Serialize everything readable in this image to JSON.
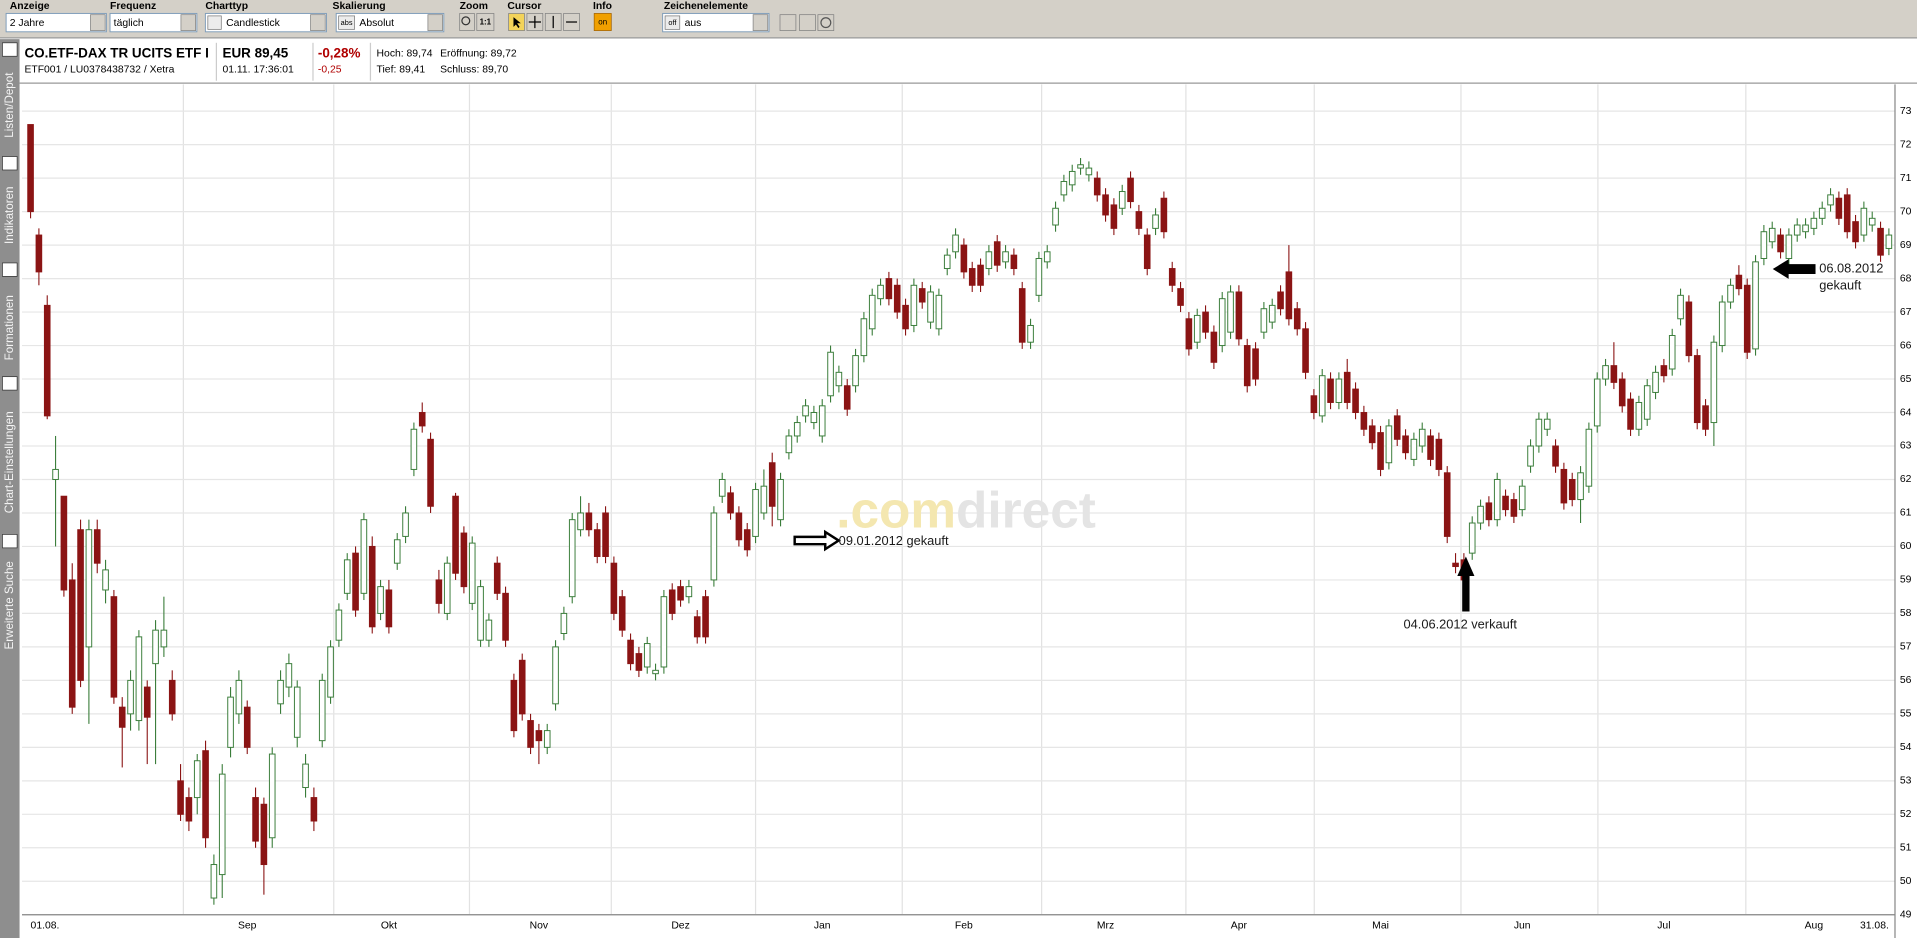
{
  "toolbar": [
    {
      "label": "Anzeige",
      "value": "2 Jahre"
    },
    {
      "label": "Frequenz",
      "value": "täglich"
    },
    {
      "label": "Charttyp",
      "value": "Candlestick"
    },
    {
      "label": "Skalierung",
      "badge": "abs",
      "value": "Absolut"
    },
    {
      "label": "Zoom",
      "badge": "1:1"
    },
    {
      "label": "Cursor"
    },
    {
      "label": "Info",
      "badge": "on"
    },
    {
      "label": "Zeichenelemente",
      "badge": "off",
      "value": "aus"
    }
  ],
  "sidebar": [
    "Listen/Depot",
    "Indikatoren",
    "Formationen",
    "Chart-Einstellungen",
    "Erweiterte Suche"
  ],
  "quote": {
    "name": "CO.ETF-DAX TR UCITS ETF I",
    "ids": "ETF001 / LU0378438732 / Xetra",
    "price": "EUR 89,45",
    "time": "01.11. 17:36:01",
    "change_pct": "-0,28%",
    "change": "-0,25",
    "high": "Hoch: 89,74",
    "open": "Eröffnung: 89,72",
    "low": "Tief: 89,41",
    "close": "Schluss: 89,70"
  },
  "chart_data": {
    "type": "candlestick",
    "categories": [
      "01.08.",
      null,
      null,
      null,
      null,
      null,
      null,
      null,
      null,
      null,
      null,
      null,
      null,
      null,
      null,
      null,
      null,
      null,
      null,
      null,
      null,
      null,
      null,
      null,
      null,
      null,
      "Sep",
      null,
      null,
      null,
      null,
      null,
      null,
      null,
      null,
      null,
      null,
      null,
      null,
      null,
      null,
      null,
      null,
      "Okt",
      null,
      null,
      null,
      null,
      null,
      null,
      null,
      null,
      null,
      null,
      null,
      null,
      null,
      null,
      null,
      null,
      null,
      "Nov",
      null,
      null,
      null,
      null,
      null,
      null,
      null,
      null,
      null,
      null,
      null,
      null,
      null,
      null,
      null,
      null,
      "Dez",
      null,
      null,
      null,
      null,
      null,
      null,
      null,
      null,
      null,
      null,
      null,
      null,
      null,
      null,
      null,
      null,
      "Jan",
      null,
      null,
      null,
      null,
      null,
      null,
      null,
      null,
      null,
      null,
      null,
      null,
      null,
      null,
      null,
      null,
      "Feb",
      null,
      null,
      null,
      null,
      null,
      null,
      null,
      null,
      null,
      null,
      null,
      null,
      null,
      null,
      null,
      null,
      "Mrz",
      null,
      null,
      null,
      null,
      null,
      null,
      null,
      null,
      null,
      null,
      null,
      null,
      null,
      null,
      null,
      "Apr",
      null,
      null,
      null,
      null,
      null,
      null,
      null,
      null,
      null,
      null,
      null,
      null,
      null,
      null,
      null,
      null,
      "Mai",
      null,
      null,
      null,
      null,
      null,
      null,
      null,
      null,
      null,
      null,
      null,
      null,
      null,
      null,
      null,
      null,
      "Jun",
      null,
      null,
      null,
      null,
      null,
      null,
      null,
      null,
      null,
      null,
      null,
      null,
      null,
      null,
      null,
      null,
      "Jul",
      null,
      null,
      null,
      null,
      null,
      null,
      null,
      null,
      null,
      null,
      null,
      null,
      null,
      null,
      null,
      null,
      null,
      "Aug",
      null,
      null,
      null,
      null,
      null,
      null,
      null,
      null,
      "31.08."
    ],
    "open": [
      72.6,
      69.3,
      67.2,
      62.0,
      61.5,
      59.0,
      60.5,
      57.0,
      60.5,
      58.7,
      58.5,
      55.2,
      55.0,
      54.8,
      55.8,
      56.5,
      57.0,
      56.0,
      53.0,
      52.5,
      52.5,
      53.9,
      49.5,
      50.2,
      54.0,
      55.0,
      55.2,
      52.5,
      52.3,
      51.3,
      55.3,
      55.8,
      54.3,
      52.8,
      52.5,
      54.2,
      55.5,
      57.2,
      58.6,
      59.8,
      58.6,
      60.0,
      58.0,
      58.7,
      59.5,
      60.3,
      62.3,
      64.0,
      63.2,
      59.0,
      58.0,
      61.5,
      60.4,
      58.3,
      57.2,
      57.2,
      59.5,
      58.6,
      56.0,
      56.6,
      54.8,
      54.5,
      54.0,
      55.3,
      57.4,
      58.5,
      60.5,
      61.0,
      60.5,
      61.0,
      59.5,
      58.5,
      57.2,
      56.8,
      56.4,
      56.2,
      56.4,
      58.7,
      58.8,
      58.5,
      57.9,
      58.5,
      59.0,
      61.5,
      61.6,
      61.0,
      60.5,
      60.3,
      61.0,
      62.5,
      60.8,
      62.8,
      63.3,
      63.9,
      63.7,
      63.3,
      64.5,
      64.8,
      64.8,
      64.8,
      65.7,
      66.5,
      67.4,
      68.0,
      67.8,
      67.2,
      66.6,
      67.7,
      66.7,
      66.5,
      68.3,
      68.8,
      69.0,
      68.3,
      68.4,
      68.3,
      69.1,
      68.5,
      68.7,
      67.7,
      66.1,
      67.5,
      68.5,
      69.6,
      70.5,
      70.8,
      71.3,
      71.1,
      71.0,
      70.5,
      70.2,
      70.1,
      71.0,
      70.0,
      69.3,
      69.5,
      70.4,
      68.3,
      67.7,
      66.8,
      66.1,
      67.0,
      66.4,
      66.0,
      66.4,
      67.6,
      66.0,
      65.9,
      66.4,
      66.7,
      67.6,
      68.2,
      67.1,
      66.5,
      64.5,
      63.9,
      65.0,
      64.3,
      65.2,
      64.7,
      64.0,
      63.6,
      63.4,
      62.5,
      63.9,
      63.3,
      62.6,
      63.0,
      63.3,
      63.2,
      62.2,
      59.5,
      59.6,
      59.8,
      60.7,
      61.3,
      60.8,
      61.5,
      61.4,
      61.1,
      62.4,
      63.0,
      63.5,
      63.0,
      62.3,
      62.0,
      61.4,
      61.8,
      63.6,
      65.0,
      65.4,
      65.0,
      64.4,
      63.5,
      63.8,
      64.6,
      65.4,
      65.3,
      66.8,
      67.3,
      65.7,
      64.2,
      63.7,
      66.0,
      67.3,
      68.1,
      67.8,
      65.9,
      68.6,
      69.1,
      69.3,
      68.6,
      69.3,
      69.4,
      69.5,
      69.8,
      70.2,
      70.4,
      70.5,
      69.7,
      69.3,
      69.6,
      69.5,
      68.9
    ],
    "high": [
      72.6,
      69.5,
      67.5,
      63.3,
      61.5,
      59.5,
      60.8,
      60.8,
      60.8,
      59.6,
      58.7,
      55.5,
      56.3,
      57.5,
      56.0,
      57.8,
      58.5,
      56.3,
      53.5,
      52.8,
      53.8,
      54.2,
      50.8,
      53.5,
      55.8,
      56.3,
      55.4,
      52.8,
      52.5,
      54.0,
      56.3,
      56.8,
      56.0,
      53.8,
      52.8,
      56.2,
      57.2,
      58.3,
      59.8,
      60.0,
      61.0,
      60.3,
      59.0,
      59.0,
      60.4,
      61.2,
      63.7,
      64.3,
      63.4,
      59.3,
      59.7,
      61.6,
      60.6,
      60.3,
      59.0,
      58.0,
      59.7,
      58.8,
      56.2,
      56.8,
      55.0,
      54.7,
      54.7,
      57.2,
      58.2,
      61.0,
      61.5,
      61.3,
      60.7,
      61.2,
      59.7,
      58.7,
      57.4,
      57.0,
      57.3,
      56.5,
      58.7,
      58.9,
      59.0,
      59.0,
      58.1,
      58.7,
      61.2,
      62.2,
      61.8,
      61.2,
      60.7,
      61.9,
      62.3,
      62.8,
      62.2,
      63.5,
      63.9,
      64.4,
      64.2,
      64.4,
      66.0,
      65.4,
      65.0,
      65.9,
      67.0,
      67.7,
      68.0,
      68.2,
      68.0,
      67.4,
      68.0,
      67.9,
      67.8,
      67.7,
      68.9,
      69.5,
      69.2,
      68.5,
      68.6,
      69.0,
      69.3,
      69.0,
      68.9,
      67.9,
      66.8,
      68.8,
      69.0,
      70.3,
      71.1,
      71.4,
      71.6,
      71.5,
      71.2,
      70.7,
      70.4,
      70.8,
      71.2,
      70.2,
      69.5,
      70.1,
      70.6,
      68.5,
      67.9,
      67.0,
      67.1,
      67.2,
      66.6,
      67.6,
      67.8,
      67.8,
      66.2,
      66.1,
      67.3,
      67.4,
      67.8,
      69.0,
      67.3,
      66.7,
      64.7,
      65.3,
      65.2,
      65.2,
      65.6,
      64.9,
      64.2,
      63.8,
      63.6,
      63.8,
      64.1,
      63.5,
      63.4,
      63.7,
      63.5,
      63.4,
      62.4,
      59.8,
      59.8,
      60.9,
      61.4,
      61.5,
      62.2,
      61.7,
      61.6,
      62.0,
      63.2,
      64.0,
      64.0,
      63.2,
      62.5,
      62.2,
      62.4,
      63.7,
      65.2,
      65.6,
      66.1,
      65.2,
      64.6,
      64.5,
      65.0,
      65.4,
      65.6,
      66.5,
      67.7,
      67.5,
      65.9,
      64.4,
      66.3,
      67.5,
      68.0,
      68.4,
      68.0,
      68.7,
      69.6,
      69.7,
      69.5,
      69.5,
      69.8,
      69.8,
      70.0,
      70.3,
      70.7,
      70.6,
      70.7,
      69.9,
      70.3,
      70.0,
      69.7,
      69.5
    ],
    "low": [
      69.8,
      67.8,
      63.8,
      60.0,
      58.5,
      55.0,
      55.8,
      54.7,
      59.2,
      58.3,
      55.3,
      53.4,
      54.5,
      54.5,
      53.5,
      53.5,
      56.7,
      54.8,
      51.8,
      51.5,
      52.0,
      51.0,
      49.3,
      49.5,
      53.7,
      54.7,
      53.8,
      51.0,
      49.6,
      51.0,
      55.0,
      55.5,
      54.0,
      52.5,
      51.5,
      54.0,
      55.3,
      57.0,
      58.4,
      57.9,
      58.4,
      57.4,
      57.8,
      57.4,
      59.3,
      60.1,
      62.1,
      63.4,
      61.0,
      58.0,
      57.8,
      59.0,
      58.6,
      58.1,
      57.0,
      57.0,
      58.4,
      57.0,
      54.3,
      54.8,
      53.8,
      53.5,
      53.8,
      55.1,
      57.2,
      58.3,
      60.3,
      60.3,
      59.5,
      59.5,
      57.8,
      57.3,
      56.3,
      56.1,
      56.2,
      56.0,
      56.2,
      57.8,
      58.2,
      58.3,
      57.1,
      57.1,
      58.8,
      61.3,
      60.8,
      60.0,
      59.7,
      60.1,
      60.8,
      60.6,
      60.6,
      62.6,
      63.1,
      63.7,
      63.5,
      63.1,
      64.3,
      64.6,
      63.9,
      64.6,
      65.5,
      66.3,
      67.2,
      67.2,
      66.8,
      66.3,
      66.4,
      67.1,
      66.5,
      66.3,
      68.1,
      68.6,
      68.0,
      67.6,
      67.6,
      68.1,
      68.2,
      68.3,
      68.1,
      65.9,
      65.9,
      67.3,
      68.3,
      69.4,
      70.3,
      70.6,
      71.1,
      70.9,
      70.3,
      69.7,
      69.3,
      69.9,
      70.1,
      69.3,
      68.1,
      69.3,
      69.2,
      67.6,
      67.0,
      65.7,
      65.9,
      66.2,
      65.3,
      65.8,
      66.2,
      66.0,
      64.6,
      64.8,
      66.2,
      66.5,
      66.9,
      66.6,
      66.3,
      65.0,
      63.8,
      63.7,
      64.1,
      64.1,
      64.1,
      63.8,
      63.3,
      62.9,
      62.1,
      62.3,
      63.0,
      62.6,
      62.4,
      62.8,
      62.4,
      62.1,
      60.1,
      59.2,
      58.8,
      59.6,
      60.5,
      60.6,
      60.6,
      60.9,
      60.7,
      60.9,
      62.2,
      62.8,
      63.3,
      62.2,
      61.1,
      61.2,
      60.7,
      61.6,
      63.4,
      64.8,
      64.7,
      64.0,
      63.3,
      63.3,
      63.6,
      64.4,
      64.9,
      65.1,
      66.6,
      65.5,
      63.5,
      63.3,
      63.0,
      65.8,
      67.1,
      67.5,
      65.6,
      65.7,
      68.4,
      68.9,
      68.6,
      68.4,
      69.1,
      69.2,
      69.3,
      69.6,
      70.0,
      69.6,
      69.2,
      68.9,
      69.1,
      69.4,
      68.5,
      68.7
    ],
    "close": [
      70.0,
      68.2,
      63.9,
      62.3,
      58.7,
      55.2,
      56.0,
      60.5,
      59.5,
      59.3,
      55.5,
      54.6,
      56.0,
      57.3,
      54.9,
      57.5,
      57.5,
      55.0,
      52.0,
      51.8,
      53.6,
      51.3,
      50.5,
      53.2,
      55.5,
      56.0,
      54.0,
      51.2,
      50.5,
      53.8,
      56.0,
      56.5,
      55.8,
      53.5,
      51.8,
      56.0,
      57.0,
      58.1,
      59.6,
      58.1,
      60.8,
      57.6,
      58.8,
      57.6,
      60.2,
      61.0,
      63.5,
      63.6,
      61.2,
      58.3,
      59.5,
      59.2,
      58.8,
      60.1,
      58.8,
      57.8,
      58.6,
      57.2,
      54.5,
      55.0,
      54.0,
      54.2,
      54.5,
      57.0,
      58.0,
      60.8,
      61.0,
      60.5,
      59.7,
      59.7,
      58.0,
      57.5,
      56.5,
      56.3,
      57.1,
      56.3,
      58.5,
      58.0,
      58.4,
      58.8,
      57.3,
      57.3,
      61.0,
      62.0,
      61.0,
      60.2,
      59.9,
      61.7,
      61.8,
      61.2,
      62.0,
      63.3,
      63.7,
      64.2,
      64.0,
      64.2,
      65.8,
      65.2,
      64.1,
      65.7,
      66.8,
      67.5,
      67.8,
      67.4,
      67.0,
      66.5,
      67.8,
      67.3,
      67.6,
      67.5,
      68.7,
      69.3,
      68.2,
      67.8,
      67.8,
      68.8,
      68.4,
      68.8,
      68.3,
      66.1,
      66.6,
      68.6,
      68.8,
      70.1,
      70.9,
      71.2,
      71.4,
      71.3,
      70.5,
      69.9,
      69.5,
      70.6,
      70.3,
      69.5,
      68.3,
      69.9,
      69.4,
      67.8,
      67.2,
      65.9,
      66.9,
      66.4,
      65.5,
      67.4,
      67.6,
      66.2,
      64.8,
      65.0,
      67.1,
      67.2,
      67.1,
      66.8,
      66.5,
      65.2,
      64.0,
      65.1,
      64.3,
      65.0,
      64.3,
      64.0,
      63.5,
      63.1,
      62.3,
      63.6,
      63.2,
      62.8,
      63.2,
      63.5,
      62.6,
      62.3,
      60.3,
      59.4,
      59.0,
      60.7,
      61.2,
      60.8,
      62.0,
      61.1,
      60.9,
      61.8,
      63.0,
      63.8,
      63.8,
      62.4,
      61.3,
      61.4,
      62.2,
      63.5,
      65.0,
      65.4,
      64.9,
      64.2,
      63.5,
      64.3,
      64.8,
      65.2,
      65.1,
      66.3,
      67.5,
      65.7,
      63.7,
      63.5,
      66.1,
      67.3,
      67.8,
      67.7,
      65.8,
      68.5,
      69.4,
      69.5,
      68.8,
      69.3,
      69.6,
      69.6,
      69.8,
      70.1,
      70.5,
      69.8,
      69.4,
      69.1,
      70.1,
      69.8,
      68.7,
      69.3
    ],
    "up_color": "#3a7d3a",
    "down_color": "#8b1414",
    "ylim": [
      49,
      73.8
    ],
    "yticks": [
      49,
      50,
      51,
      52,
      53,
      54,
      55,
      56,
      57,
      58,
      59,
      60,
      61,
      62,
      63,
      64,
      65,
      66,
      67,
      68,
      69,
      70,
      71,
      72,
      73
    ],
    "grid": true,
    "annotations": [
      "09.01.2012 gekauft",
      "04.06.2012 verkauft",
      "06.08.2012",
      "gekauft"
    ],
    "watermark": [
      ".com",
      "direct"
    ]
  }
}
